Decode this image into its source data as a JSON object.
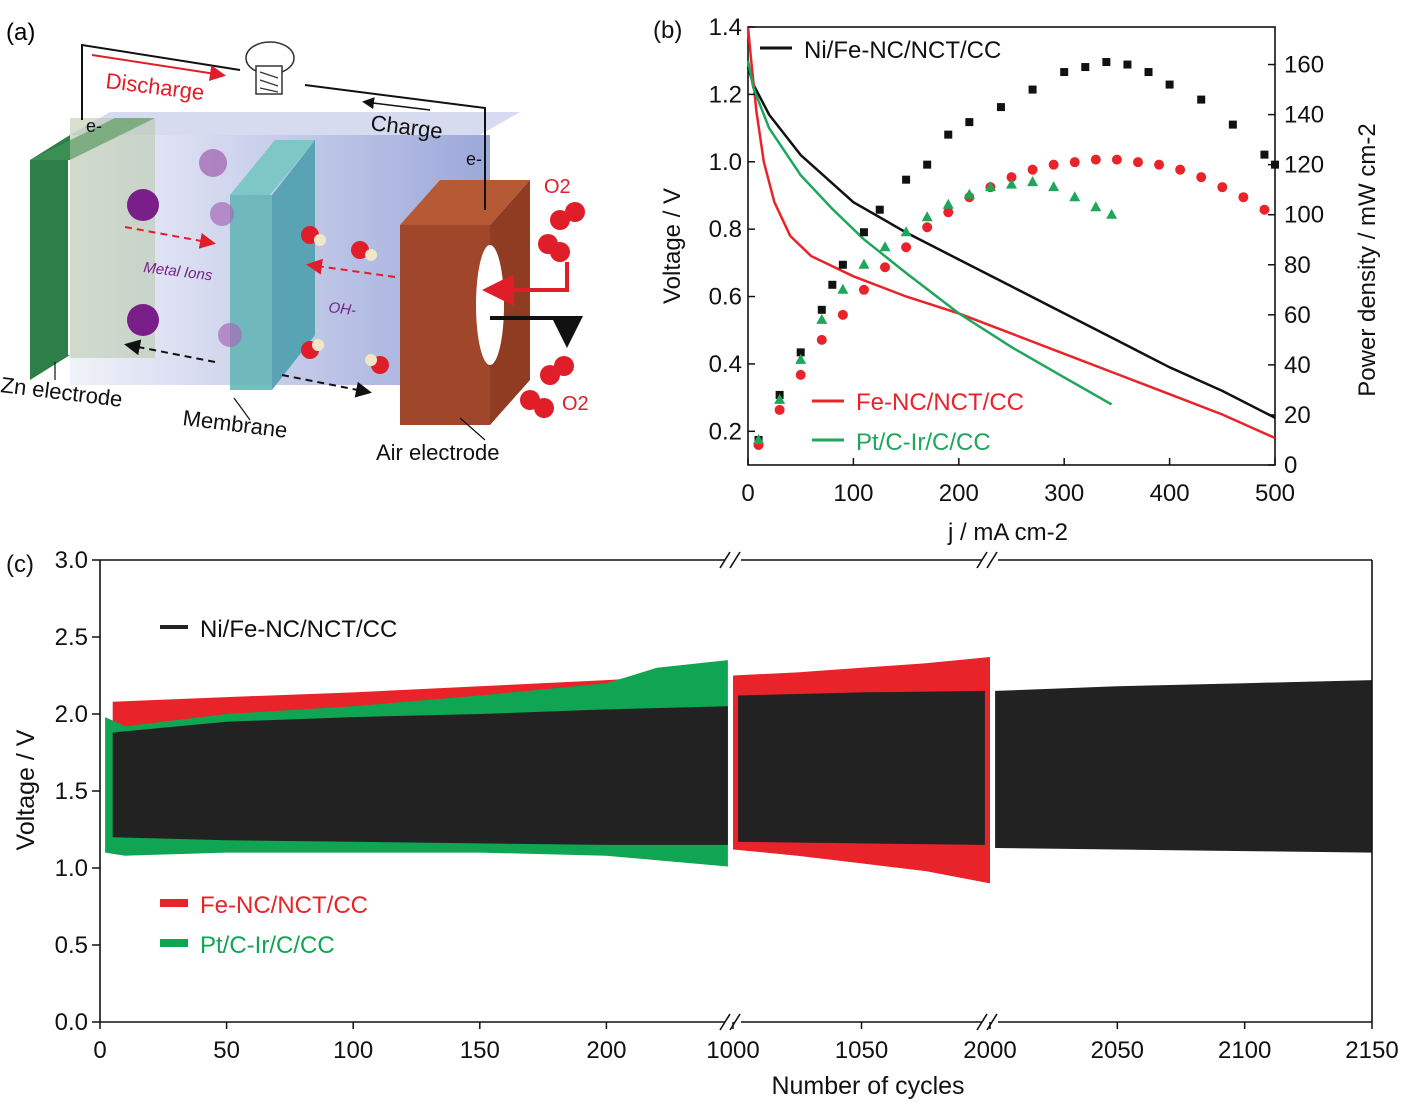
{
  "panels": {
    "a": {
      "tag": "(a)",
      "labels": {
        "discharge": "Discharge",
        "charge": "Charge",
        "electron_left": "e-",
        "electron_right": "e-",
        "metal_ions": "Metal Ions",
        "hydroxide": "OH-",
        "o2_top": "O2",
        "o2_bottom": "O2",
        "zn_electrode": "Zn electrode",
        "membrane": "Membrane",
        "air_electrode": "Air electrode"
      },
      "colors": {
        "zn": "#1f7a3c",
        "membrane": "#5fb3b3",
        "air": "#a0462a",
        "ion": "#7a1f8a",
        "o2": "#e01e2a",
        "arrow_red": "#e01e2a"
      }
    },
    "b": {
      "tag": "(b)",
      "colors": {
        "ni": "#111111",
        "fe": "#e8242a",
        "pt": "#1ea65a"
      }
    },
    "c": {
      "tag": "(c)",
      "colors": {
        "ni": "#222222",
        "fe": "#e8242a",
        "pt": "#0fa552"
      }
    }
  },
  "chart_data": [
    {
      "panel": "b",
      "type": "line",
      "xlabel": "j / mA cm-2",
      "ylabel": "Voltage / V",
      "y2label": "Power density / mW cm-2",
      "xlim": [
        0,
        500
      ],
      "ylim": [
        0.1,
        1.4
      ],
      "y2lim": [
        0,
        175
      ],
      "xticks": [
        0,
        100,
        200,
        300,
        400,
        500
      ],
      "yticks": [
        0.2,
        0.4,
        0.6,
        0.8,
        1.0,
        1.2,
        1.4
      ],
      "y2ticks": [
        0,
        20,
        40,
        60,
        80,
        100,
        120,
        140,
        160
      ],
      "legend": [
        "Ni/Fe-NC/NCT/CC",
        "Fe-NC/NCT/CC",
        "Pt/C-Ir/C/CC"
      ],
      "series": [
        {
          "name": "Ni/Fe-NC/NCT/CC",
          "kind": "voltage",
          "points": [
            [
              0,
              1.28
            ],
            [
              5,
              1.23
            ],
            [
              20,
              1.14
            ],
            [
              50,
              1.02
            ],
            [
              100,
              0.88
            ],
            [
              150,
              0.79
            ],
            [
              200,
              0.71
            ],
            [
              250,
              0.63
            ],
            [
              300,
              0.55
            ],
            [
              350,
              0.47
            ],
            [
              400,
              0.39
            ],
            [
              450,
              0.32
            ],
            [
              500,
              0.24
            ]
          ]
        },
        {
          "name": "Fe-NC/NCT/CC",
          "kind": "voltage",
          "points": [
            [
              0,
              1.4
            ],
            [
              3,
              1.3
            ],
            [
              8,
              1.15
            ],
            [
              15,
              1.0
            ],
            [
              25,
              0.88
            ],
            [
              40,
              0.78
            ],
            [
              60,
              0.72
            ],
            [
              100,
              0.66
            ],
            [
              150,
              0.6
            ],
            [
              200,
              0.55
            ],
            [
              250,
              0.49
            ],
            [
              300,
              0.43
            ],
            [
              350,
              0.37
            ],
            [
              400,
              0.31
            ],
            [
              450,
              0.25
            ],
            [
              500,
              0.18
            ]
          ]
        },
        {
          "name": "Pt/C-Ir/C/CC",
          "kind": "voltage",
          "points": [
            [
              0,
              1.3
            ],
            [
              5,
              1.22
            ],
            [
              20,
              1.1
            ],
            [
              50,
              0.96
            ],
            [
              80,
              0.86
            ],
            [
              110,
              0.77
            ],
            [
              150,
              0.67
            ],
            [
              200,
              0.55
            ],
            [
              250,
              0.45
            ],
            [
              300,
              0.36
            ],
            [
              345,
              0.28
            ]
          ]
        },
        {
          "name": "Ni/Fe-NC/NCT/CC",
          "kind": "power",
          "points": [
            [
              10,
              10
            ],
            [
              30,
              28
            ],
            [
              50,
              45
            ],
            [
              70,
              62
            ],
            [
              80,
              72
            ],
            [
              90,
              80
            ],
            [
              110,
              93
            ],
            [
              125,
              102
            ],
            [
              150,
              114
            ],
            [
              170,
              120
            ],
            [
              190,
              132
            ],
            [
              210,
              137
            ],
            [
              240,
              143
            ],
            [
              270,
              150
            ],
            [
              300,
              157
            ],
            [
              320,
              159
            ],
            [
              340,
              161
            ],
            [
              360,
              160
            ],
            [
              380,
              157
            ],
            [
              400,
              152
            ],
            [
              430,
              146
            ],
            [
              460,
              136
            ],
            [
              490,
              124
            ],
            [
              500,
              120
            ]
          ]
        },
        {
          "name": "Fe-NC/NCT/CC",
          "kind": "power",
          "points": [
            [
              10,
              8
            ],
            [
              30,
              22
            ],
            [
              50,
              36
            ],
            [
              70,
              50
            ],
            [
              90,
              60
            ],
            [
              110,
              70
            ],
            [
              130,
              79
            ],
            [
              150,
              87
            ],
            [
              170,
              95
            ],
            [
              190,
              101
            ],
            [
              210,
              107
            ],
            [
              230,
              111
            ],
            [
              250,
              115
            ],
            [
              270,
              118
            ],
            [
              290,
              120
            ],
            [
              310,
              121
            ],
            [
              330,
              122
            ],
            [
              350,
              122
            ],
            [
              370,
              121
            ],
            [
              390,
              120
            ],
            [
              410,
              118
            ],
            [
              430,
              115
            ],
            [
              450,
              111
            ],
            [
              470,
              107
            ],
            [
              490,
              102
            ]
          ]
        },
        {
          "name": "Pt/C-Ir/C/CC",
          "kind": "power",
          "points": [
            [
              10,
              10
            ],
            [
              30,
              26
            ],
            [
              50,
              42
            ],
            [
              70,
              58
            ],
            [
              90,
              70
            ],
            [
              110,
              80
            ],
            [
              130,
              87
            ],
            [
              150,
              93
            ],
            [
              170,
              99
            ],
            [
              190,
              104
            ],
            [
              210,
              108
            ],
            [
              230,
              111
            ],
            [
              250,
              112
            ],
            [
              270,
              113
            ],
            [
              290,
              111
            ],
            [
              310,
              107
            ],
            [
              330,
              103
            ],
            [
              345,
              100
            ]
          ]
        }
      ]
    },
    {
      "panel": "c",
      "type": "area",
      "xlabel": "Number  of cycles",
      "ylabel": "Voltage / V",
      "ylim": [
        0,
        3.0
      ],
      "yticks": [
        "0.0",
        "0.5",
        "1.0",
        "1.5",
        "2.0",
        "2.5",
        "3.0"
      ],
      "segments": [
        {
          "xlim": [
            0,
            250
          ],
          "xticks": [
            0,
            50,
            100,
            150,
            200
          ]
        },
        {
          "xlim": [
            1000,
            1100
          ],
          "xticks": [
            1000,
            1050
          ]
        },
        {
          "xlim": [
            2000,
            2150
          ],
          "xticks": [
            2000,
            2050,
            2100,
            2150
          ]
        }
      ],
      "legend": [
        "Ni/Fe-NC/NCT/CC",
        "Fe-NC/NCT/CC",
        "Pt/C-Ir/C/CC"
      ],
      "series": [
        {
          "name": "Fe-NC/NCT/CC",
          "bands": [
            {
              "segment": 0,
              "x": [
                5,
                50,
                100,
                150,
                200,
                240
              ],
              "upper": [
                2.08,
                2.11,
                2.14,
                2.18,
                2.22,
                2.26
              ],
              "lower": [
                1.15,
                1.14,
                1.13,
                1.12,
                1.1,
                1.05
              ]
            },
            {
              "segment": 1,
              "x": [
                1000,
                1025,
                1050,
                1075,
                1100
              ],
              "upper": [
                2.25,
                2.27,
                2.3,
                2.33,
                2.37
              ],
              "lower": [
                1.12,
                1.08,
                1.03,
                0.98,
                0.9
              ]
            }
          ]
        },
        {
          "name": "Pt/C-Ir/C/CC",
          "bands": [
            {
              "segment": 0,
              "x": [
                2,
                10,
                50,
                100,
                150,
                200,
                220,
                248
              ],
              "upper": [
                1.98,
                1.92,
                2.0,
                2.05,
                2.12,
                2.2,
                2.3,
                2.35
              ],
              "lower": [
                1.1,
                1.08,
                1.1,
                1.1,
                1.1,
                1.08,
                1.05,
                1.01
              ]
            }
          ]
        },
        {
          "name": "Ni/Fe-NC/NCT/CC",
          "bands": [
            {
              "segment": 0,
              "x": [
                5,
                50,
                100,
                150,
                200,
                248
              ],
              "upper": [
                1.88,
                1.95,
                1.98,
                2.0,
                2.03,
                2.05
              ],
              "lower": [
                1.2,
                1.18,
                1.17,
                1.16,
                1.15,
                1.15
              ]
            },
            {
              "segment": 1,
              "x": [
                1002,
                1050,
                1098
              ],
              "upper": [
                2.12,
                2.14,
                2.15
              ],
              "lower": [
                1.17,
                1.16,
                1.15
              ]
            },
            {
              "segment": 2,
              "x": [
                2002,
                2050,
                2100,
                2150
              ],
              "upper": [
                2.15,
                2.18,
                2.2,
                2.22
              ],
              "lower": [
                1.13,
                1.12,
                1.11,
                1.1
              ]
            }
          ]
        }
      ]
    }
  ]
}
